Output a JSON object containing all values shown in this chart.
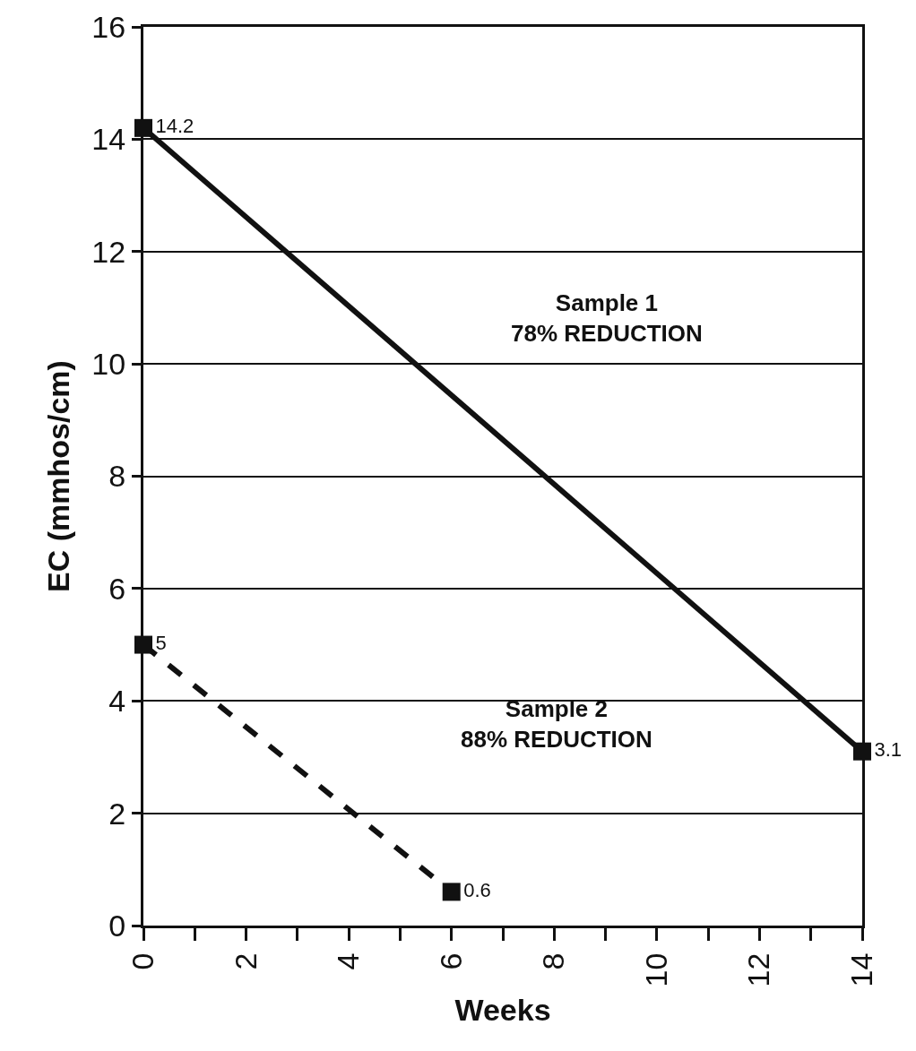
{
  "chart_data": {
    "type": "line",
    "xlabel": "Weeks",
    "ylabel": "EC (mmhos/cm)",
    "series": [
      {
        "x": [
          0,
          14
        ],
        "values": [
          14.2,
          3.1
        ],
        "color": "#111111",
        "line_style": "solid"
      },
      {
        "x": [
          0,
          6
        ],
        "values": [
          5,
          0.6
        ],
        "color": "#111111",
        "line_style": "dashed"
      }
    ],
    "xlim": [
      0,
      14
    ],
    "ylim": [
      0,
      16
    ],
    "xticks": [
      0,
      {
        "value": 1,
        "label": null
      },
      2,
      {
        "value": 3,
        "label": null
      },
      4,
      {
        "value": 5,
        "label": null
      },
      6,
      {
        "value": 7,
        "label": null
      },
      8,
      {
        "value": 9,
        "label": null
      },
      10,
      {
        "value": 11,
        "label": null
      },
      12,
      {
        "value": 13,
        "label": null
      },
      14
    ],
    "yticks": [
      0,
      2,
      4,
      6,
      8,
      10,
      12,
      14,
      16
    ],
    "grid": "y",
    "marker": "square",
    "data_labels": true,
    "annotations": [
      "Sample 1\n78% REDUCTION",
      "Sample 2\n88% REDUCTION"
    ]
  }
}
